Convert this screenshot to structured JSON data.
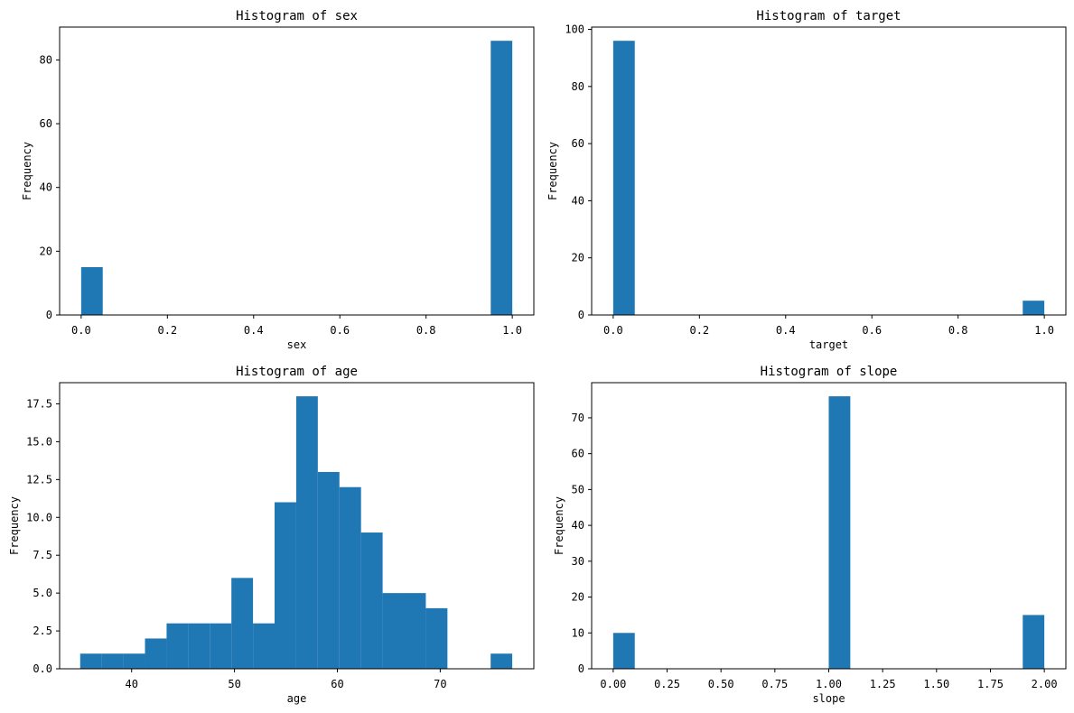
{
  "bar_color": "#1f77b4",
  "chart_data": [
    {
      "type": "bar",
      "title": "Histogram of sex",
      "xlabel": "sex",
      "ylabel": "Frequency",
      "xlim": [
        -0.05,
        1.05
      ],
      "ylim": [
        0,
        90.3
      ],
      "xticks": [
        0.0,
        0.2,
        0.4,
        0.6,
        0.8,
        1.0
      ],
      "xtick_labels": [
        "0.0",
        "0.2",
        "0.4",
        "0.6",
        "0.8",
        "1.0"
      ],
      "yticks": [
        0,
        20,
        40,
        60,
        80
      ],
      "ytick_labels": [
        "0",
        "20",
        "40",
        "60",
        "80"
      ],
      "bins": [
        {
          "x0": 0.0,
          "x1": 0.05,
          "value": 15
        },
        {
          "x0": 0.95,
          "x1": 1.0,
          "value": 86
        }
      ]
    },
    {
      "type": "bar",
      "title": "Histogram of target",
      "xlabel": "target",
      "ylabel": "Frequency",
      "xlim": [
        -0.05,
        1.05
      ],
      "ylim": [
        0,
        100.8
      ],
      "xticks": [
        0.0,
        0.2,
        0.4,
        0.6,
        0.8,
        1.0
      ],
      "xtick_labels": [
        "0.0",
        "0.2",
        "0.4",
        "0.6",
        "0.8",
        "1.0"
      ],
      "yticks": [
        0,
        20,
        40,
        60,
        80,
        100
      ],
      "ytick_labels": [
        "0",
        "20",
        "40",
        "60",
        "80",
        "100"
      ],
      "bins": [
        {
          "x0": 0.0,
          "x1": 0.05,
          "value": 96
        },
        {
          "x0": 0.95,
          "x1": 1.0,
          "value": 5
        }
      ]
    },
    {
      "type": "bar",
      "title": "Histogram of age",
      "xlabel": "age",
      "ylabel": "Frequency",
      "xlim": [
        33.0,
        79.1
      ],
      "ylim": [
        0,
        18.9
      ],
      "xticks": [
        40,
        50,
        60,
        70
      ],
      "xtick_labels": [
        "40",
        "50",
        "60",
        "70"
      ],
      "yticks": [
        0,
        2.5,
        5,
        7.5,
        10,
        12.5,
        15,
        17.5
      ],
      "ytick_labels": [
        "0.0",
        "2.5",
        "5.0",
        "7.5",
        "10.0",
        "12.5",
        "15.0",
        "17.5"
      ],
      "bins": [
        {
          "x0": 35.0,
          "x1": 37.1,
          "value": 1
        },
        {
          "x0": 37.1,
          "x1": 39.2,
          "value": 1
        },
        {
          "x0": 39.2,
          "x1": 41.3,
          "value": 1
        },
        {
          "x0": 41.3,
          "x1": 43.4,
          "value": 2
        },
        {
          "x0": 43.4,
          "x1": 45.5,
          "value": 3
        },
        {
          "x0": 45.5,
          "x1": 47.6,
          "value": 3
        },
        {
          "x0": 47.6,
          "x1": 49.7,
          "value": 3
        },
        {
          "x0": 49.7,
          "x1": 51.8,
          "value": 6
        },
        {
          "x0": 51.8,
          "x1": 53.9,
          "value": 3
        },
        {
          "x0": 53.9,
          "x1": 56.0,
          "value": 11
        },
        {
          "x0": 56.0,
          "x1": 58.1,
          "value": 18
        },
        {
          "x0": 58.1,
          "x1": 60.2,
          "value": 13
        },
        {
          "x0": 60.2,
          "x1": 62.3,
          "value": 12
        },
        {
          "x0": 62.3,
          "x1": 64.4,
          "value": 9
        },
        {
          "x0": 64.4,
          "x1": 66.5,
          "value": 5
        },
        {
          "x0": 66.5,
          "x1": 68.6,
          "value": 5
        },
        {
          "x0": 68.6,
          "x1": 70.7,
          "value": 4
        },
        {
          "x0": 70.7,
          "x1": 72.8,
          "value": 0
        },
        {
          "x0": 72.8,
          "x1": 74.9,
          "value": 0
        },
        {
          "x0": 74.9,
          "x1": 77.0,
          "value": 1
        }
      ]
    },
    {
      "type": "bar",
      "title": "Histogram of slope",
      "xlabel": "slope",
      "ylabel": "Frequency",
      "xlim": [
        -0.1,
        2.1
      ],
      "ylim": [
        0,
        79.8
      ],
      "xticks": [
        0.0,
        0.25,
        0.5,
        0.75,
        1.0,
        1.25,
        1.5,
        1.75,
        2.0
      ],
      "xtick_labels": [
        "0.00",
        "0.25",
        "0.50",
        "0.75",
        "1.00",
        "1.25",
        "1.50",
        "1.75",
        "2.00"
      ],
      "yticks": [
        0,
        10,
        20,
        30,
        40,
        50,
        60,
        70
      ],
      "ytick_labels": [
        "0",
        "10",
        "20",
        "30",
        "40",
        "50",
        "60",
        "70"
      ],
      "bins": [
        {
          "x0": 0.0,
          "x1": 0.1,
          "value": 10
        },
        {
          "x0": 1.0,
          "x1": 1.1,
          "value": 76
        },
        {
          "x0": 1.9,
          "x1": 2.0,
          "value": 15
        }
      ]
    }
  ]
}
